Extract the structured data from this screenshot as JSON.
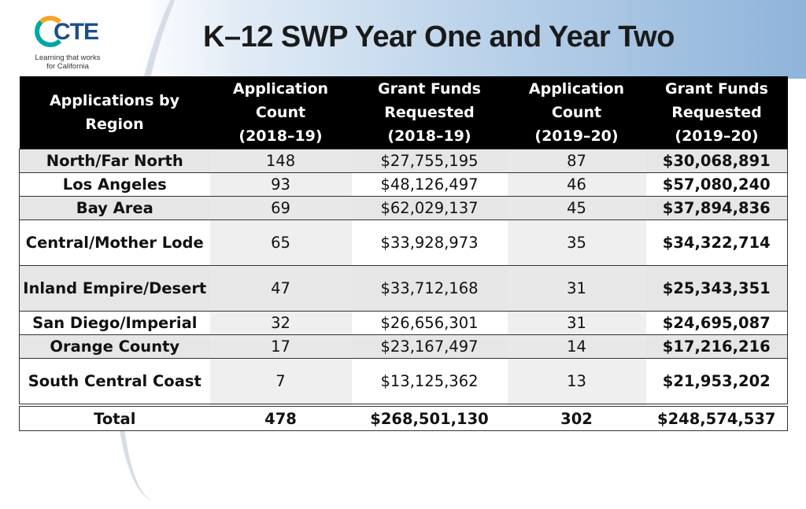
{
  "logo": {
    "text": "CTE",
    "tagline_line1": "Learning that works",
    "tagline_line2": "for California"
  },
  "title": "K–12 SWP Year One and Year Two",
  "table": {
    "headers": [
      [
        "Applications by",
        "Region"
      ],
      [
        "Application",
        "Count",
        "(2018–19)"
      ],
      [
        "Grant Funds",
        "Requested",
        "(2018–19)"
      ],
      [
        "Application",
        "Count",
        "(2019–20)"
      ],
      [
        "Grant Funds",
        "Requested",
        "(2019–20)"
      ]
    ],
    "rows": [
      {
        "region": "North/Far North",
        "count_1819": "148",
        "funds_1819": "$27,755,195",
        "count_1920": "87",
        "funds_1920": "$30,068,891"
      },
      {
        "region": "Los Angeles",
        "count_1819": "93",
        "funds_1819": "$48,126,497",
        "count_1920": "46",
        "funds_1920": "$57,080,240"
      },
      {
        "region": "Bay Area",
        "count_1819": "69",
        "funds_1819": "$62,029,137",
        "count_1920": "45",
        "funds_1920": "$37,894,836"
      },
      {
        "region": "Central/Mother Lode",
        "count_1819": "65",
        "funds_1819": "$33,928,973",
        "count_1920": "35",
        "funds_1920": "$34,322,714"
      },
      {
        "region": "Inland Empire/Desert",
        "count_1819": "47",
        "funds_1819": "$33,712,168",
        "count_1920": "31",
        "funds_1920": "$25,343,351"
      },
      {
        "region": "San Diego/Imperial",
        "count_1819": "32",
        "funds_1819": "$26,656,301",
        "count_1920": "31",
        "funds_1920": "$24,695,087"
      },
      {
        "region": "Orange County",
        "count_1819": "17",
        "funds_1819": "$23,167,497",
        "count_1920": "14",
        "funds_1920": "$17,216,216"
      },
      {
        "region": "South Central Coast",
        "count_1819": "7",
        "funds_1819": "$13,125,362",
        "count_1920": "13",
        "funds_1920": "$21,953,202"
      }
    ],
    "total": {
      "region": "Total",
      "count_1819": "478",
      "funds_1819": "$268,501,130",
      "count_1920": "302",
      "funds_1920": "$248,574,537"
    }
  }
}
